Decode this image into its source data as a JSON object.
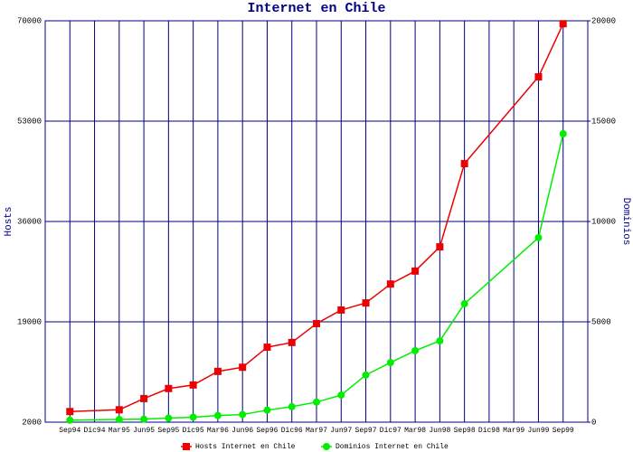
{
  "chart_data": {
    "type": "line",
    "title": "Internet en Chile",
    "y_label": "Hosts",
    "y2_label": "Dominios",
    "categories": [
      "Sep94",
      "Dic94",
      "Mar95",
      "Jun95",
      "Sep95",
      "Dic95",
      "Mar96",
      "Jun96",
      "Sep96",
      "Dic96",
      "Mar97",
      "Jun97",
      "Sep97",
      "Dic97",
      "Mar98",
      "Jun98",
      "Sep98",
      "Dic98",
      "Mar99",
      "Jun99",
      "Sep99"
    ],
    "ylim": [
      2000,
      70000
    ],
    "yticks": [
      2000,
      19000,
      36000,
      53000,
      70000
    ],
    "y2lim": [
      0,
      20000
    ],
    "y2ticks": [
      0,
      5000,
      10000,
      15000,
      20000
    ],
    "grid": true,
    "legend": "bottom",
    "series": [
      {
        "name": "Hosts Internet en Chile",
        "color": "#ee0000",
        "marker": "square",
        "values": [
          3800,
          null,
          4100,
          6000,
          7700,
          8300,
          10600,
          11300,
          14700,
          15500,
          18700,
          21000,
          22200,
          25400,
          27600,
          31700,
          45800,
          null,
          null,
          60500,
          69500
        ]
      },
      {
        "name": "Dominios Internet en Chile",
        "color": "#00ee00",
        "marker": "circle",
        "axis": "y2",
        "values": [
          100,
          null,
          135,
          150,
          200,
          250,
          330,
          380,
          600,
          770,
          1000,
          1350,
          2350,
          2970,
          3560,
          4050,
          5900,
          null,
          null,
          9190,
          14370
        ]
      }
    ]
  }
}
